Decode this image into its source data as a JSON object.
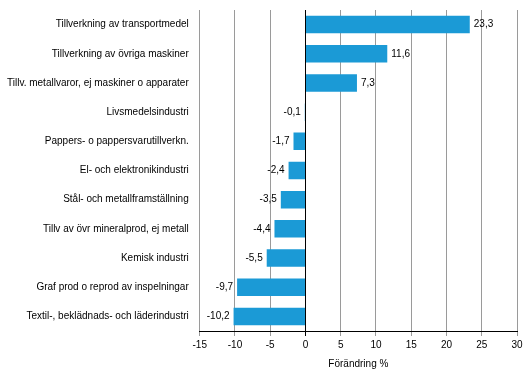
{
  "chart_data": {
    "type": "bar",
    "orientation": "horizontal",
    "categories": [
      "Tillverkning av transportmedel",
      "Tillverkning av övriga maskiner",
      "Tillv. metallvaror, ej maskiner o apparater",
      "Livsmedelsindustri",
      "Pappers- o pappersvarutillverkn.",
      "El- och elektronikindustri",
      "Stål- och metallframställning",
      "Tillv av övr mineralprod, ej metall",
      "Kemisk industri",
      "Graf prod o reprod av inspelningar",
      "Textil-, beklädnads- och läderindustri"
    ],
    "values": [
      23.3,
      11.6,
      7.3,
      -0.1,
      -1.7,
      -2.4,
      -3.5,
      -4.4,
      -5.5,
      -9.7,
      -10.2
    ],
    "value_labels": [
      "23,3",
      "11,6",
      "7,3",
      "-0,1",
      "-1,7",
      "-2,4",
      "-3,5",
      "-4,4",
      "-5,5",
      "-9,7",
      "-10,2"
    ],
    "data_labels": true,
    "color": "#1b9ad6",
    "x_label": "Förändring %",
    "xlim": [
      -15,
      30
    ],
    "xticks": [
      -15,
      -10,
      -5,
      0,
      5,
      10,
      15,
      20,
      25,
      30
    ],
    "grid": true
  }
}
